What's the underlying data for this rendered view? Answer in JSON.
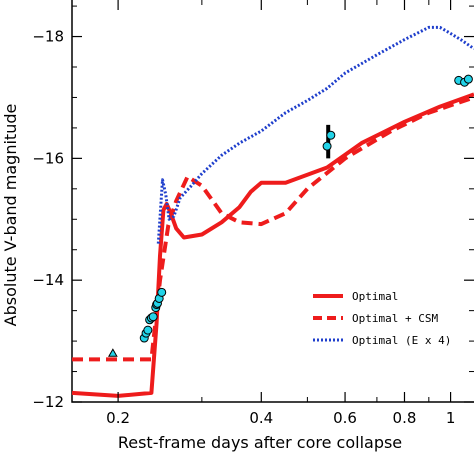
{
  "chart_data": {
    "type": "line",
    "xscale": "log",
    "xlim": [
      0.16,
      1.12
    ],
    "ylim": [
      -12,
      -18.6
    ],
    "y_inverted": true,
    "xlabel": "Rest-frame days after core collapse",
    "ylabel": "Absolute V-band magnitude",
    "x_ticks": [
      0.2,
      0.4,
      0.6,
      0.8,
      1
    ],
    "x_tick_labels": [
      "0.2",
      "0.4",
      "0.6",
      "0.8",
      "1"
    ],
    "y_ticks": [
      -12,
      -14,
      -16,
      -18
    ],
    "y_tick_labels": [
      "−12",
      "−14",
      "−16",
      "−18"
    ],
    "legend_position": "bottom-right",
    "series": [
      {
        "name": "Optimal",
        "style": "solid",
        "color": "#ee1c1c",
        "x": [
          0.16,
          0.2,
          0.235,
          0.241,
          0.245,
          0.249,
          0.253,
          0.258,
          0.265,
          0.275,
          0.3,
          0.33,
          0.36,
          0.38,
          0.4,
          0.45,
          0.55,
          0.65,
          0.8,
          0.95,
          1.12
        ],
        "y": [
          -12.15,
          -12.1,
          -12.15,
          -13.3,
          -14.4,
          -15.15,
          -15.25,
          -15.1,
          -14.85,
          -14.7,
          -14.75,
          -14.95,
          -15.2,
          -15.45,
          -15.6,
          -15.6,
          -15.85,
          -16.25,
          -16.6,
          -16.85,
          -17.05
        ]
      },
      {
        "name": "Optimal + CSM",
        "style": "dashed",
        "color": "#ee1c1c",
        "x": [
          0.16,
          0.22,
          0.235,
          0.245,
          0.255,
          0.265,
          0.28,
          0.3,
          0.33,
          0.36,
          0.4,
          0.45,
          0.5,
          0.6,
          0.75,
          0.9,
          1.12
        ],
        "y": [
          -12.7,
          -12.7,
          -12.7,
          -14.0,
          -14.9,
          -15.3,
          -15.7,
          -15.55,
          -15.1,
          -14.95,
          -14.92,
          -15.1,
          -15.5,
          -16.0,
          -16.45,
          -16.75,
          -17.0
        ]
      },
      {
        "name": "Optimal (E x 4)",
        "style": "dotted",
        "color": "#1f3fcc",
        "x": [
          0.243,
          0.248,
          0.252,
          0.256,
          0.262,
          0.27,
          0.285,
          0.3,
          0.33,
          0.36,
          0.4,
          0.45,
          0.5,
          0.55,
          0.6,
          0.7,
          0.8,
          0.9,
          0.95,
          1.0,
          1.05,
          1.12
        ],
        "y": [
          -14.6,
          -15.65,
          -15.4,
          -15.0,
          -15.05,
          -15.35,
          -15.55,
          -15.75,
          -16.05,
          -16.25,
          -16.45,
          -16.75,
          -16.95,
          -17.15,
          -17.4,
          -17.7,
          -17.95,
          -18.15,
          -18.15,
          -18.05,
          -17.95,
          -17.8
        ]
      }
    ],
    "observations": {
      "style": "circle",
      "fill": "#22d3e8",
      "x": [
        0.227,
        0.229,
        0.231,
        0.233,
        0.235,
        0.237,
        0.24,
        0.241,
        0.242,
        0.244,
        0.247,
        0.55,
        0.56,
        1.04,
        1.07,
        1.09
      ],
      "y": [
        -13.05,
        -13.13,
        -13.18,
        -13.35,
        -13.38,
        -13.4,
        -13.55,
        -13.6,
        -13.62,
        -13.7,
        -13.8,
        -16.2,
        -16.38,
        -17.28,
        -17.25,
        -17.3
      ]
    },
    "error_bars": [
      {
        "x": 0.553,
        "y_low": -16.0,
        "y_high": -16.55
      }
    ],
    "upper_limit": {
      "x": 0.195,
      "y": -12.8,
      "marker": "triangle"
    }
  }
}
